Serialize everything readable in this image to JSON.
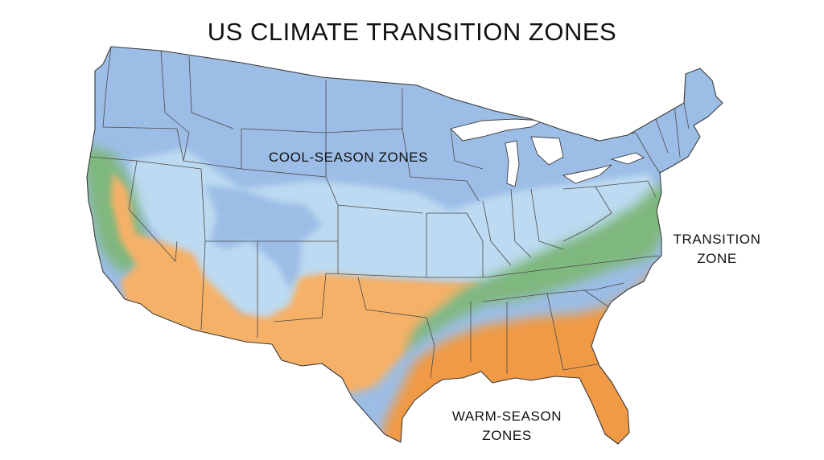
{
  "title": "US CLIMATE TRANSITION ZONES",
  "labels": {
    "cool": "COOL-SEASON ZONES",
    "transition_line1": "TRANSITION",
    "transition_line2": "ZONE",
    "warm_line1": "WARM-SEASON",
    "warm_line2": "ZONES"
  },
  "colors": {
    "cool_dark": "#9cbde6",
    "cool_light": "#bcdaf1",
    "transition": "#7fb87e",
    "warm_light": "#f6b167",
    "warm_dark": "#f09a45",
    "lakes": "#ffffff"
  }
}
